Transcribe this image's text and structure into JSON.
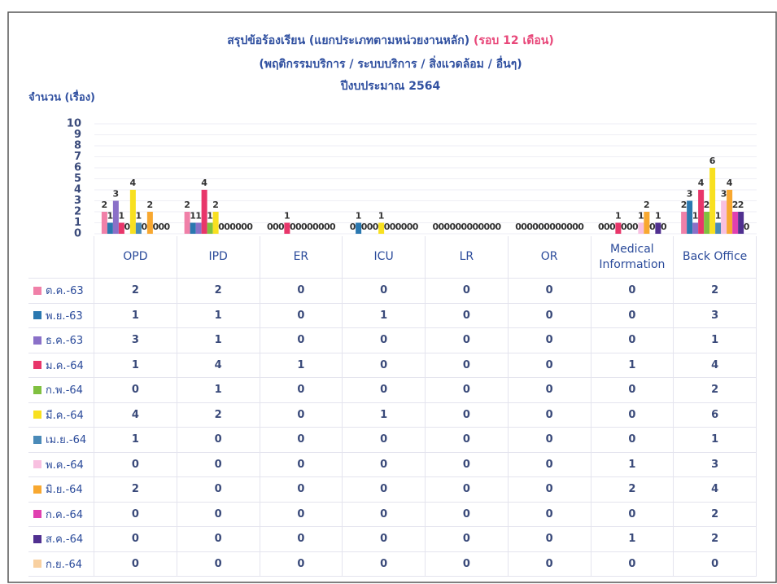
{
  "chart_data": {
    "type": "bar",
    "title": "สรุปข้อร้องเรียน (แยกประเภทตามหน่วยงานหลัก)",
    "title_period": "(รอบ 12 เดือน)",
    "subtitle": "(พฤติกรรมบริการ / ระบบบริการ / สิ่งแวดล้อม / อื่นๆ)",
    "subtitle2": "ปีงบประมาณ 2564",
    "y_label": "จำนวน (เรื่อง)",
    "categories": [
      "OPD",
      "IPD",
      "ER",
      "ICU",
      "LR",
      "OR",
      "Medical Information",
      "Back Office"
    ],
    "ylim": [
      0,
      10
    ],
    "yticks": [
      0,
      1,
      2,
      3,
      4,
      5,
      6,
      7,
      8,
      9,
      10
    ],
    "grid": true,
    "series": [
      {
        "name": "ต.ค.-63",
        "color": "#f080a8",
        "values": [
          2,
          2,
          0,
          0,
          0,
          0,
          0,
          2
        ]
      },
      {
        "name": "พ.ย.-63",
        "color": "#2a78b0",
        "values": [
          1,
          1,
          0,
          1,
          0,
          0,
          0,
          3
        ]
      },
      {
        "name": "ธ.ค.-63",
        "color": "#8a70c8",
        "values": [
          3,
          1,
          0,
          0,
          0,
          0,
          0,
          1
        ]
      },
      {
        "name": "ม.ค.-64",
        "color": "#e8366a",
        "values": [
          1,
          4,
          1,
          0,
          0,
          0,
          1,
          4
        ]
      },
      {
        "name": "ก.พ.-64",
        "color": "#80c040",
        "values": [
          0,
          1,
          0,
          0,
          0,
          0,
          0,
          2
        ]
      },
      {
        "name": "มี.ค.-64",
        "color": "#f8e020",
        "values": [
          4,
          2,
          0,
          1,
          0,
          0,
          0,
          6
        ]
      },
      {
        "name": "เม.ย.-64",
        "color": "#4a8ab8",
        "values": [
          1,
          0,
          0,
          0,
          0,
          0,
          0,
          1
        ]
      },
      {
        "name": "พ.ค.-64",
        "color": "#f8c0e0",
        "values": [
          0,
          0,
          0,
          0,
          0,
          0,
          1,
          3
        ]
      },
      {
        "name": "มิ.ย.-64",
        "color": "#f8a830",
        "values": [
          2,
          0,
          0,
          0,
          0,
          0,
          2,
          4
        ]
      },
      {
        "name": "ก.ค.-64",
        "color": "#e040b0",
        "values": [
          0,
          0,
          0,
          0,
          0,
          0,
          0,
          2
        ]
      },
      {
        "name": "ส.ค.-64",
        "color": "#503090",
        "values": [
          0,
          0,
          0,
          0,
          0,
          0,
          1,
          2
        ]
      },
      {
        "name": "ก.ย.-64",
        "color": "#f8d0a0",
        "values": [
          0,
          0,
          0,
          0,
          0,
          0,
          0,
          0
        ]
      }
    ]
  }
}
